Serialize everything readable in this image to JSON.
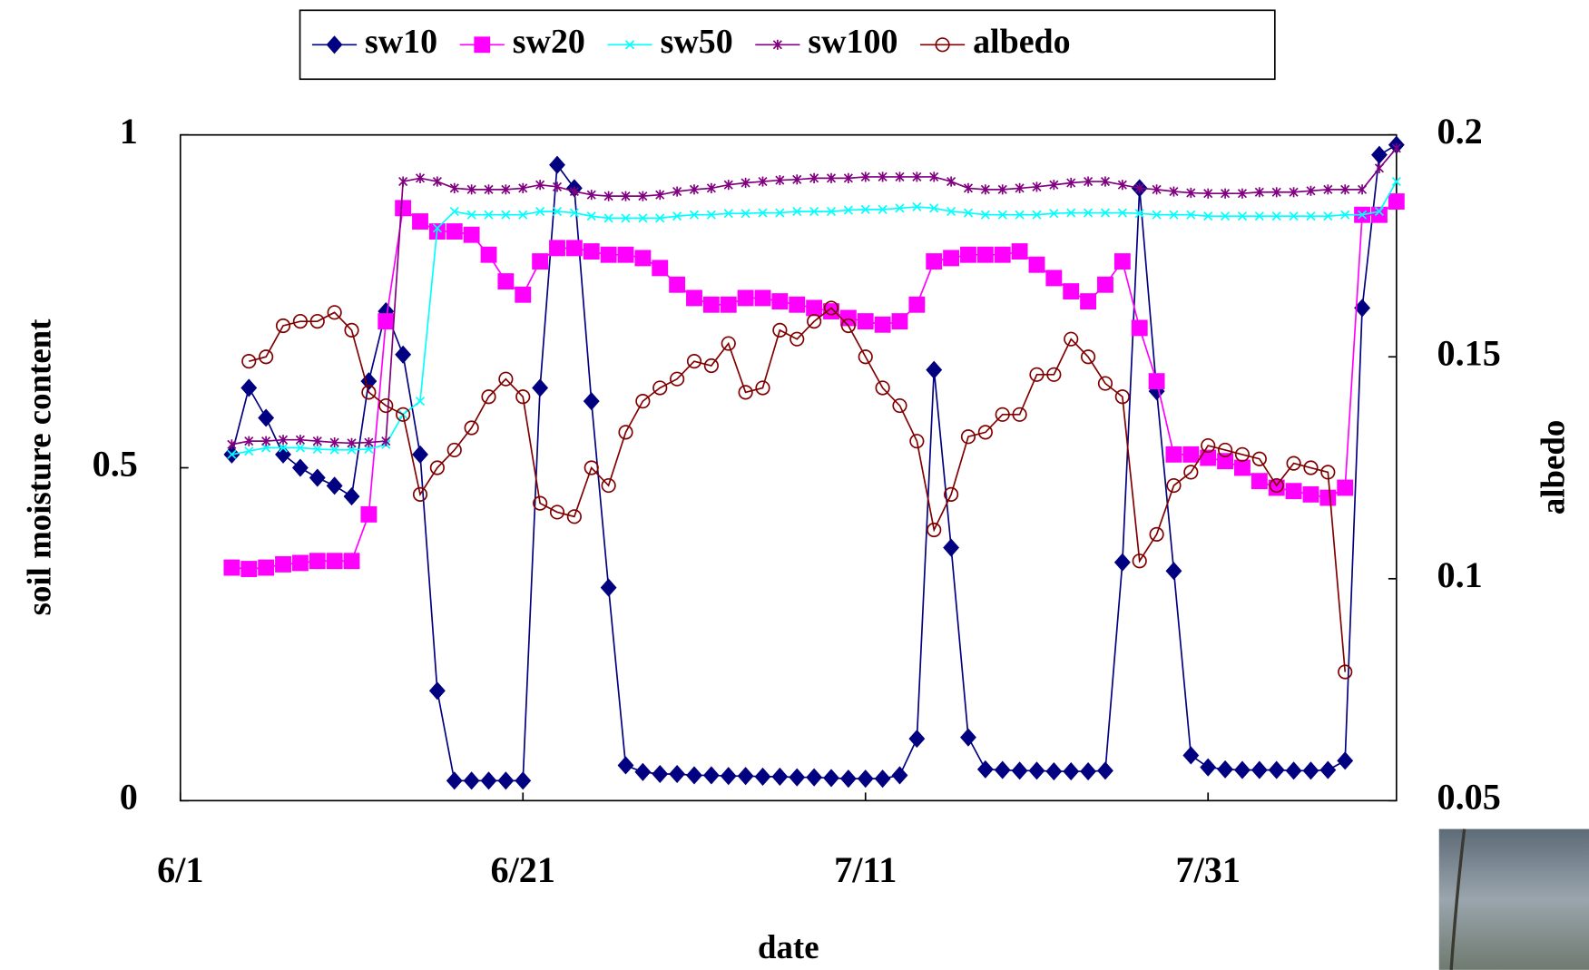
{
  "chart_data": {
    "type": "line",
    "x_label": "date",
    "y_label": "soil moisture content",
    "y2_label": "albedo",
    "legend": "top",
    "x": [
      "6/4",
      "6/5",
      "6/6",
      "6/7",
      "6/8",
      "6/9",
      "6/10",
      "6/11",
      "6/12",
      "6/13",
      "6/14",
      "6/15",
      "6/16",
      "6/17",
      "6/18",
      "6/19",
      "6/20",
      "6/21",
      "6/22",
      "6/23",
      "6/24",
      "6/25",
      "6/26",
      "6/27",
      "6/28",
      "6/29",
      "6/30",
      "7/1",
      "7/2",
      "7/3",
      "7/4",
      "7/5",
      "7/6",
      "7/7",
      "7/8",
      "7/9",
      "7/10",
      "7/11",
      "7/12",
      "7/13",
      "7/14",
      "7/15",
      "7/16",
      "7/17",
      "7/18",
      "7/19",
      "7/20",
      "7/21",
      "7/22",
      "7/23",
      "7/24",
      "7/25",
      "7/26",
      "7/27",
      "7/28",
      "7/29",
      "7/30",
      "7/31",
      "8/1",
      "8/2",
      "8/3",
      "8/4",
      "8/5",
      "8/6",
      "8/7",
      "8/8",
      "8/9",
      "8/10",
      "8/11"
    ],
    "xlim": [
      "6/1",
      "8/11"
    ],
    "xticks": [
      "6/1",
      "6/21",
      "7/11",
      "7/31"
    ],
    "ylim": [
      0,
      1
    ],
    "yticks": [
      0,
      0.5,
      1
    ],
    "y2lim": [
      0.05,
      0.2
    ],
    "y2ticks": [
      0.05,
      0.1,
      0.15,
      0.2
    ],
    "series": [
      {
        "name": "sw10",
        "color": "#000080",
        "marker": "diamond",
        "values": [
          0.52,
          0.62,
          0.575,
          0.52,
          0.5,
          0.485,
          0.473,
          0.457,
          0.63,
          0.735,
          0.67,
          0.52,
          0.165,
          0.03,
          0.03,
          0.03,
          0.03,
          0.03,
          0.62,
          0.955,
          0.92,
          0.6,
          0.32,
          0.053,
          0.043,
          0.04,
          0.04,
          0.038,
          0.038,
          0.037,
          0.037,
          0.036,
          0.036,
          0.035,
          0.035,
          0.034,
          0.033,
          0.033,
          0.033,
          0.038,
          0.093,
          0.647,
          0.38,
          0.095,
          0.047,
          0.046,
          0.045,
          0.045,
          0.044,
          0.044,
          0.044,
          0.045,
          0.358,
          0.92,
          0.615,
          0.345,
          0.068,
          0.05,
          0.047,
          0.046,
          0.046,
          0.046,
          0.045,
          0.045,
          0.046,
          0.06,
          0.74,
          0.97,
          0.985
        ]
      },
      {
        "name": "sw20",
        "color": "#ff00ff",
        "marker": "square",
        "values": [
          0.35,
          0.348,
          0.35,
          0.355,
          0.357,
          0.36,
          0.36,
          0.36,
          0.43,
          0.72,
          0.89,
          0.87,
          0.855,
          0.855,
          0.85,
          0.82,
          0.78,
          0.76,
          0.81,
          0.83,
          0.83,
          0.825,
          0.82,
          0.82,
          0.815,
          0.8,
          0.775,
          0.755,
          0.745,
          0.745,
          0.755,
          0.755,
          0.75,
          0.745,
          0.74,
          0.735,
          0.725,
          0.72,
          0.715,
          0.72,
          0.745,
          0.81,
          0.815,
          0.82,
          0.82,
          0.82,
          0.825,
          0.805,
          0.785,
          0.765,
          0.75,
          0.775,
          0.81,
          0.71,
          0.63,
          0.52,
          0.52,
          0.515,
          0.51,
          0.5,
          0.48,
          0.47,
          0.465,
          0.46,
          0.455,
          0.47,
          0.88,
          0.88,
          0.9
        ]
      },
      {
        "name": "sw50",
        "color": "#00ffff",
        "marker": "x",
        "values": [
          0.52,
          0.525,
          0.53,
          0.53,
          0.53,
          0.528,
          0.527,
          0.527,
          0.528,
          0.535,
          0.58,
          0.6,
          0.86,
          0.885,
          0.88,
          0.88,
          0.88,
          0.88,
          0.885,
          0.885,
          0.883,
          0.878,
          0.875,
          0.875,
          0.875,
          0.875,
          0.878,
          0.88,
          0.88,
          0.882,
          0.882,
          0.883,
          0.883,
          0.885,
          0.885,
          0.885,
          0.887,
          0.888,
          0.888,
          0.89,
          0.892,
          0.89,
          0.885,
          0.883,
          0.88,
          0.88,
          0.88,
          0.88,
          0.882,
          0.883,
          0.883,
          0.883,
          0.883,
          0.882,
          0.88,
          0.88,
          0.88,
          0.878,
          0.878,
          0.878,
          0.878,
          0.878,
          0.878,
          0.878,
          0.878,
          0.88,
          0.88,
          0.885,
          0.93
        ]
      },
      {
        "name": "sw100",
        "color": "#800080",
        "marker": "star",
        "values": [
          0.535,
          0.54,
          0.54,
          0.542,
          0.542,
          0.54,
          0.538,
          0.537,
          0.538,
          0.54,
          0.93,
          0.935,
          0.93,
          0.92,
          0.918,
          0.918,
          0.918,
          0.92,
          0.925,
          0.922,
          0.915,
          0.91,
          0.908,
          0.908,
          0.908,
          0.91,
          0.915,
          0.918,
          0.92,
          0.925,
          0.928,
          0.93,
          0.932,
          0.933,
          0.935,
          0.935,
          0.935,
          0.937,
          0.937,
          0.937,
          0.937,
          0.937,
          0.93,
          0.92,
          0.918,
          0.918,
          0.92,
          0.922,
          0.925,
          0.928,
          0.93,
          0.93,
          0.925,
          0.92,
          0.918,
          0.915,
          0.913,
          0.912,
          0.912,
          0.912,
          0.914,
          0.914,
          0.914,
          0.916,
          0.918,
          0.918,
          0.918,
          0.95,
          0.98
        ]
      },
      {
        "name": "albedo",
        "color": "#800000",
        "marker": "circle",
        "axis": "y2",
        "values": [
          null,
          0.149,
          0.15,
          0.157,
          0.158,
          0.158,
          0.16,
          0.156,
          0.142,
          0.139,
          0.137,
          0.119,
          0.125,
          0.129,
          0.134,
          0.141,
          0.145,
          0.141,
          0.117,
          0.115,
          0.114,
          0.125,
          0.121,
          0.133,
          0.14,
          0.143,
          0.145,
          0.149,
          0.148,
          0.153,
          0.142,
          0.143,
          0.156,
          0.154,
          0.158,
          0.161,
          0.157,
          0.15,
          0.143,
          0.139,
          0.131,
          0.111,
          0.119,
          0.132,
          0.133,
          0.137,
          0.137,
          0.146,
          0.146,
          0.154,
          0.15,
          0.144,
          0.141,
          0.104,
          0.11,
          0.121,
          0.124,
          0.13,
          0.129,
          0.128,
          0.127,
          0.121,
          0.126,
          0.125,
          0.124,
          0.079,
          null,
          null,
          null
        ]
      }
    ]
  }
}
